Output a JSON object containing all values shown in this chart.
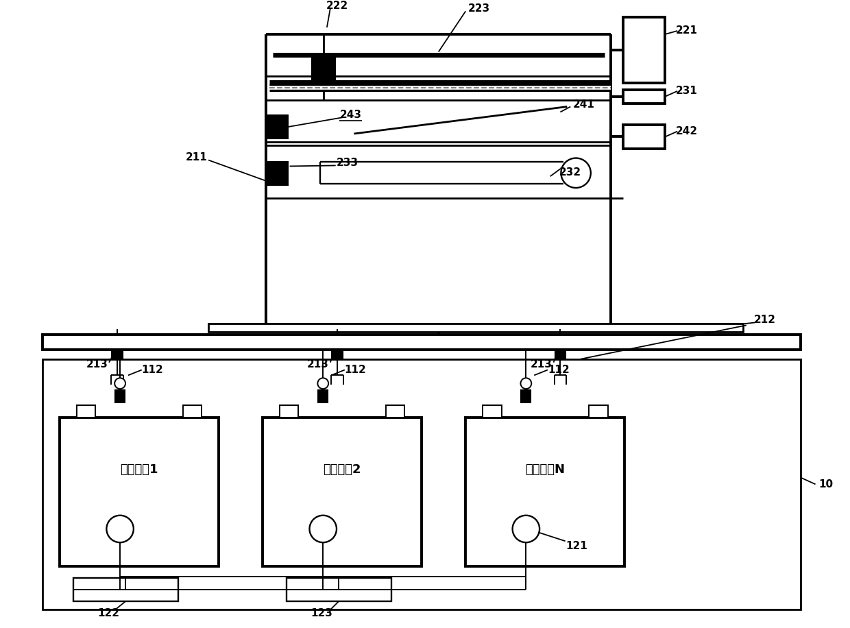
{
  "bg_color": "#ffffff",
  "fig_width": 12.4,
  "fig_height": 9.16,
  "dpi": 100,
  "cell_labels": [
    "单体电芯1",
    "单体电芯2",
    "单体电芯N"
  ],
  "lw_thin": 1.4,
  "lw_med": 2.0,
  "lw_thick": 2.8,
  "label_fs": 11
}
